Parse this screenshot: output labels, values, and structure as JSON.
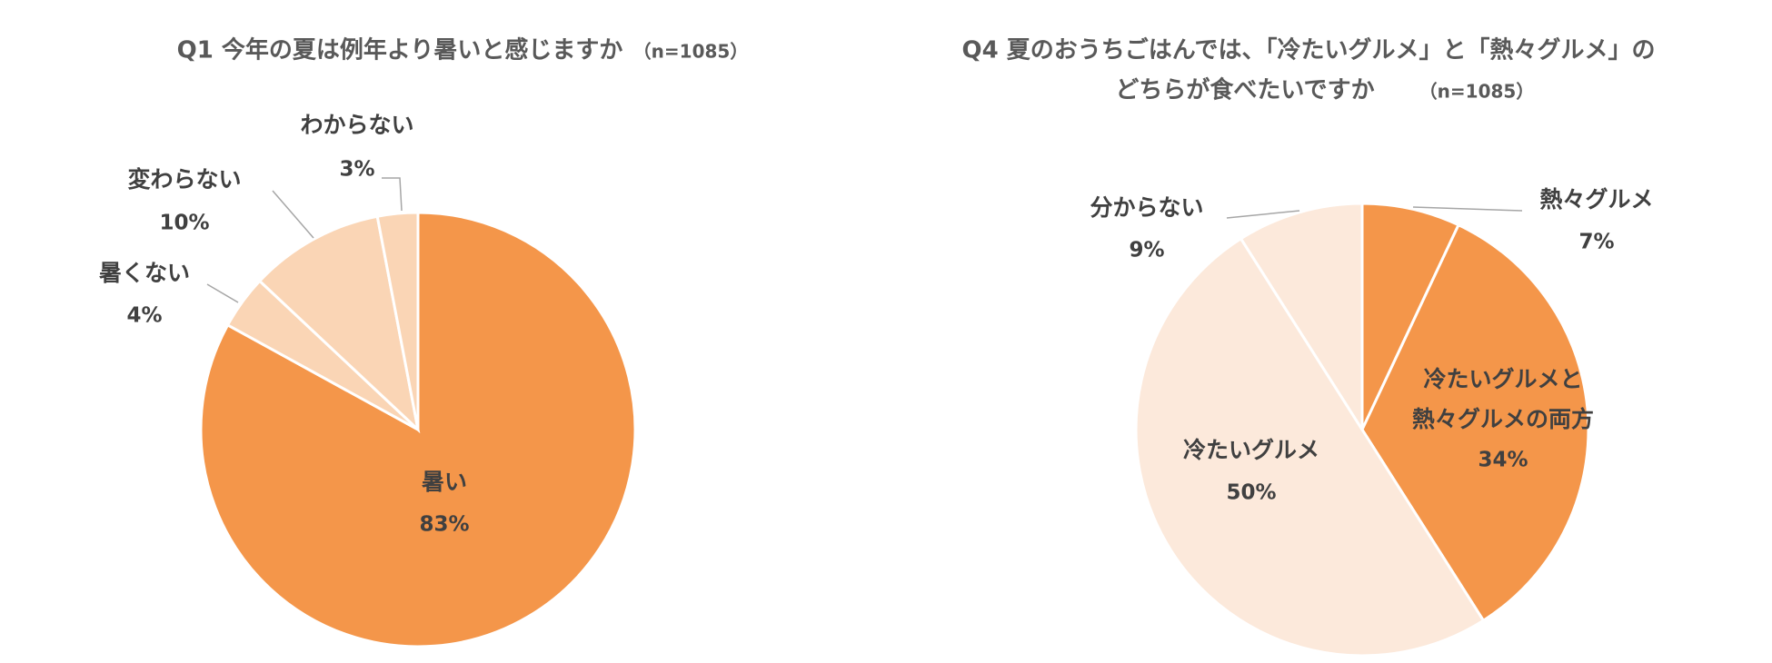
{
  "chart_data": [
    {
      "type": "pie",
      "title": "Q1 今年の夏は例年より暑いと感じますか",
      "sample_note": "（n=1085）",
      "categories": [
        "暑い",
        "暑くない",
        "変わらない",
        "わからない"
      ],
      "values": [
        83,
        4,
        10,
        3
      ],
      "value_labels": [
        "83%",
        "4%",
        "10%",
        "3%"
      ],
      "colors": [
        "#f4964a",
        "#fad5b5",
        "#fad5b5",
        "#fad5b5"
      ]
    },
    {
      "type": "pie",
      "title": [
        "Q4 夏のおうちごはんでは、「冷たいグルメ」と「熱々グルメ」の",
        "どちらが食べたいですか"
      ],
      "sample_note": "（n=1085）",
      "categories": [
        "熱々グルメ",
        "冷たいグルメと熱々グルメの両方",
        "冷たいグルメ",
        "分からない"
      ],
      "values": [
        7,
        34,
        50,
        9
      ],
      "value_labels": [
        "7%",
        "34%",
        "50%",
        "9%"
      ],
      "colors": [
        "#f4964a",
        "#f4964a",
        "#fce9db",
        "#fce9db"
      ]
    }
  ]
}
